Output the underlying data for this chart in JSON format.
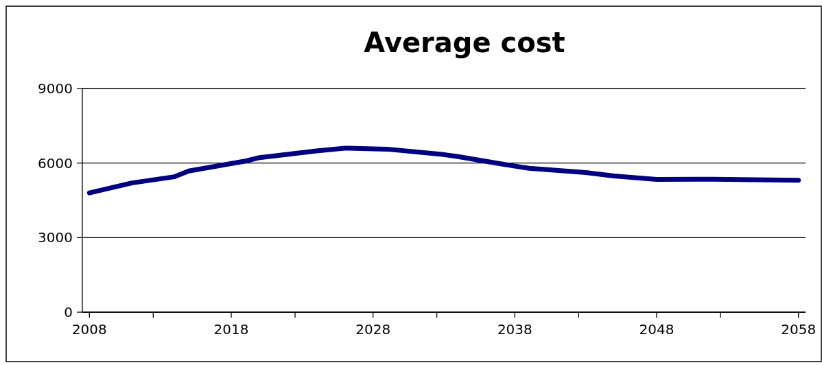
{
  "chart_data": {
    "type": "line",
    "title": "Average cost",
    "x": [
      2008,
      2011,
      2014,
      2015,
      2017,
      2019,
      2020,
      2024,
      2026,
      2029,
      2033,
      2034,
      2037,
      2039,
      2043,
      2045,
      2048,
      2052,
      2058
    ],
    "series": [
      {
        "color": "#000080",
        "values": [
          4800,
          5200,
          5450,
          5680,
          5880,
          6080,
          6220,
          6490,
          6600,
          6560,
          6340,
          6260,
          5970,
          5790,
          5620,
          5480,
          5340,
          5350,
          5310
        ]
      }
    ],
    "xlim": [
      2007.5,
      2058.5
    ],
    "xticks": [
      2008,
      {
        "value": 2012.5,
        "label": null
      },
      2018,
      {
        "value": 2022.5,
        "label": null
      },
      2028,
      {
        "value": 2032.5,
        "label": null
      },
      2038,
      {
        "value": 2042.5,
        "label": null
      },
      2048,
      {
        "value": 2052.5,
        "label": null
      },
      2058
    ],
    "ylim": [
      0,
      9000
    ],
    "yticks": [
      0,
      3000,
      6000,
      9000
    ],
    "grid": "y",
    "marker": "none",
    "line_style": "solid"
  }
}
